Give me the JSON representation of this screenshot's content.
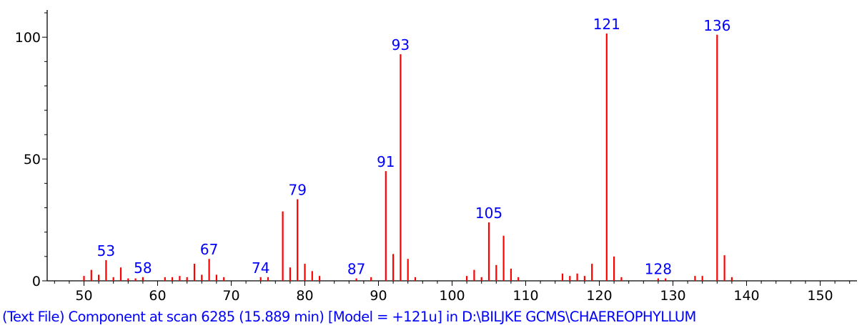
{
  "chart_data": {
    "type": "bar",
    "title": "",
    "xlabel": "",
    "ylabel": "",
    "xlim": [
      45,
      155
    ],
    "ylim": [
      0,
      110
    ],
    "x_ticks": [
      50,
      60,
      70,
      80,
      90,
      100,
      110,
      120,
      130,
      140,
      150
    ],
    "y_ticks": [
      0,
      50,
      100
    ],
    "grid": false,
    "bar_color": "#ff0000",
    "label_color": "#0000ff",
    "series": [
      {
        "x": [
          50,
          51,
          52,
          53,
          54,
          55,
          56,
          57,
          58,
          61,
          62,
          63,
          64,
          65,
          66,
          67,
          68,
          69,
          74,
          75,
          77,
          78,
          79,
          80,
          81,
          82,
          87,
          89,
          91,
          92,
          93,
          94,
          95,
          102,
          103,
          104,
          105,
          106,
          107,
          108,
          109,
          115,
          116,
          117,
          118,
          119,
          121,
          122,
          123,
          128,
          129,
          133,
          134,
          136,
          137,
          138
        ],
        "y": [
          2,
          4.5,
          2.5,
          8.5,
          1.5,
          5.5,
          1,
          1,
          1.5,
          1.5,
          1.5,
          2,
          1.5,
          7,
          2.5,
          9,
          2.5,
          1.5,
          1.5,
          1.5,
          28.5,
          5.5,
          33.5,
          7,
          4,
          2,
          1,
          1.5,
          45,
          11,
          93,
          9,
          1.5,
          2,
          4.5,
          1.5,
          24,
          6.5,
          18.5,
          5,
          1.5,
          3,
          2,
          3,
          2,
          7,
          101.5,
          10,
          1.5,
          1,
          1,
          2,
          2,
          101,
          10.5,
          1.5
        ]
      }
    ],
    "annotations": [
      {
        "x": 53,
        "text": "53"
      },
      {
        "x": 58,
        "text": "58"
      },
      {
        "x": 67,
        "text": "67"
      },
      {
        "x": 74,
        "text": "74"
      },
      {
        "x": 79,
        "text": "79"
      },
      {
        "x": 87,
        "text": "87"
      },
      {
        "x": 91,
        "text": "91"
      },
      {
        "x": 93,
        "text": "93"
      },
      {
        "x": 105,
        "text": "105"
      },
      {
        "x": 121,
        "text": "121"
      },
      {
        "x": 128,
        "text": "128"
      },
      {
        "x": 136,
        "text": "136"
      }
    ]
  },
  "caption": {
    "text": "(Text File) Component at scan 6285 (15.889 min) [Model = +121u] in D:\\BILJKE GCMS\\CHAEREOPHYLLUM",
    "color": "#0000ff"
  }
}
